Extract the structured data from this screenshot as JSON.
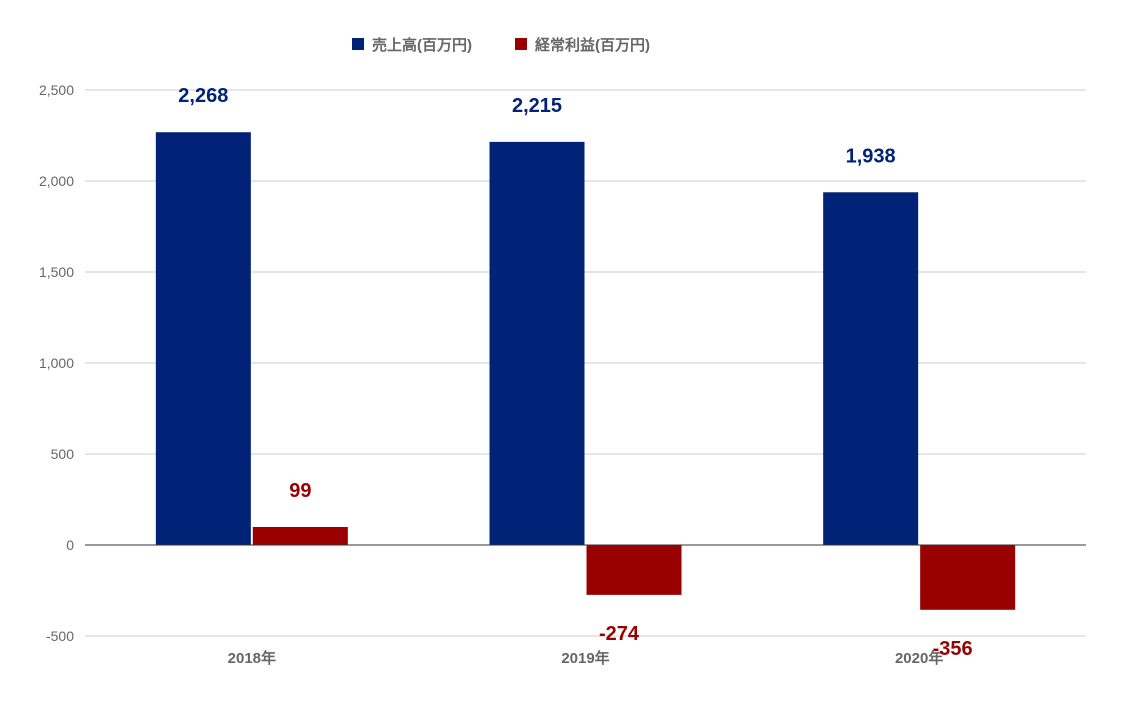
{
  "chart_data": {
    "type": "bar",
    "categories": [
      "2018年",
      "2019年",
      "2020年"
    ],
    "series": [
      {
        "name": "売上高(百万円)",
        "values": [
          2268,
          2215,
          1938
        ],
        "labels": [
          "2,268",
          "2,215",
          "1,938"
        ],
        "color": "#002277"
      },
      {
        "name": "経常利益(百万円)",
        "values": [
          99,
          -274,
          -356
        ],
        "labels": [
          "99",
          "-274",
          "-356"
        ],
        "color": "#990000"
      }
    ],
    "ylim": [
      -500,
      2500
    ],
    "yticks": [
      2500,
      2000,
      1500,
      1000,
      500,
      0,
      -500
    ],
    "ytick_labels": [
      "2,500",
      "2,000",
      "1,500",
      "1,000",
      "500",
      "0",
      "-500"
    ],
    "grid": true,
    "legend_position": "top"
  }
}
